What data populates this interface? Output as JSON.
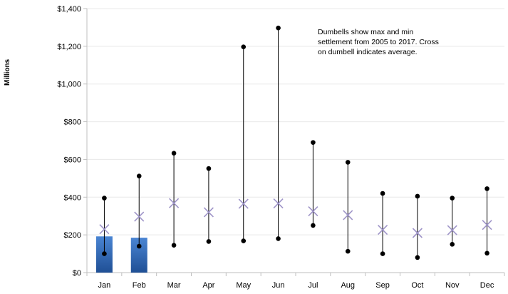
{
  "chart_data": {
    "type": "dumbbell",
    "ylabel": "Millions",
    "ylim": [
      0,
      1400
    ],
    "yticks": [
      0,
      200,
      400,
      600,
      800,
      1000,
      1200,
      1400
    ],
    "ytick_labels": [
      "$0",
      "$200",
      "$400",
      "$600",
      "$800",
      "$1,000",
      "$1,200",
      "$1,400"
    ],
    "categories": [
      "Jan",
      "Feb",
      "Mar",
      "Apr",
      "May",
      "Jun",
      "Jul",
      "Aug",
      "Sep",
      "Oct",
      "Nov",
      "Dec"
    ],
    "max": [
      395,
      512,
      633,
      552,
      1197,
      1297,
      690,
      585,
      420,
      405,
      395,
      445
    ],
    "min": [
      100,
      140,
      145,
      165,
      168,
      180,
      250,
      113,
      100,
      80,
      150,
      103
    ],
    "average": [
      230,
      297,
      368,
      320,
      365,
      367,
      325,
      305,
      227,
      210,
      225,
      253
    ],
    "bars": [
      {
        "category": "Jan",
        "value": 192
      },
      {
        "category": "Feb",
        "value": 185
      }
    ],
    "annotation_lines": [
      "Dumbells show max and min",
      "settlement from 2005 to 2017.  Cross",
      "on dumbell indicates average."
    ],
    "grid": true
  },
  "colors": {
    "bar": "#3a74c4",
    "bar_dark": "#1f4f95",
    "dumbbell": "#000000",
    "cross": "#9e94c8",
    "grid": "#e8e8e8",
    "axis": "#bfbfbf"
  }
}
